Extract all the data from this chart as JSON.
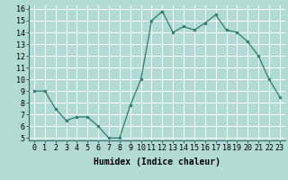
{
  "x": [
    0,
    1,
    2,
    3,
    4,
    5,
    6,
    7,
    8,
    9,
    10,
    11,
    12,
    13,
    14,
    15,
    16,
    17,
    18,
    19,
    20,
    21,
    22,
    23
  ],
  "y": [
    9,
    9,
    7.5,
    6.5,
    6.8,
    6.8,
    6.0,
    5.0,
    5.0,
    7.8,
    10.0,
    15.0,
    15.8,
    14.0,
    14.5,
    14.2,
    14.8,
    15.5,
    14.2,
    14.0,
    13.2,
    12.0,
    10.0,
    8.5
  ],
  "line_color": "#2e7d6e",
  "marker_color": "#2e7d6e",
  "bg_color": "#b2dbd6",
  "grid_color": "#ffffff",
  "xlabel": "Humidex (Indice chaleur)",
  "xlim": [
    -0.5,
    23.5
  ],
  "ylim": [
    4.8,
    16.3
  ],
  "yticks": [
    5,
    6,
    7,
    8,
    9,
    10,
    11,
    12,
    13,
    14,
    15,
    16
  ],
  "xticks": [
    0,
    1,
    2,
    3,
    4,
    5,
    6,
    7,
    8,
    9,
    10,
    11,
    12,
    13,
    14,
    15,
    16,
    17,
    18,
    19,
    20,
    21,
    22,
    23
  ],
  "xlabel_fontsize": 7,
  "tick_fontsize": 6
}
